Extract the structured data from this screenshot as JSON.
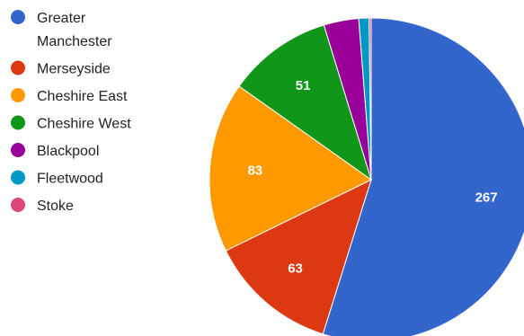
{
  "chart_data": {
    "type": "pie",
    "title": "",
    "legend_position": "left",
    "slices": [
      {
        "label": "Greater Manchester",
        "value": 267,
        "color": "#3366cc",
        "value_label": "267"
      },
      {
        "label": "Merseyside",
        "value": 63,
        "color": "#dc3912",
        "value_label": "63"
      },
      {
        "label": "Cheshire East",
        "value": 83,
        "color": "#ff9900",
        "value_label": "83"
      },
      {
        "label": "Cheshire West",
        "value": 51,
        "color": "#109618",
        "value_label": "51"
      },
      {
        "label": "Blackpool",
        "value": 17,
        "color": "#990099",
        "value_label": ""
      },
      {
        "label": "Fleetwood",
        "value": 5,
        "color": "#0099c6",
        "value_label": ""
      },
      {
        "label": "Stoke",
        "value": 1,
        "color": "#dd4477",
        "value_label": ""
      }
    ]
  }
}
